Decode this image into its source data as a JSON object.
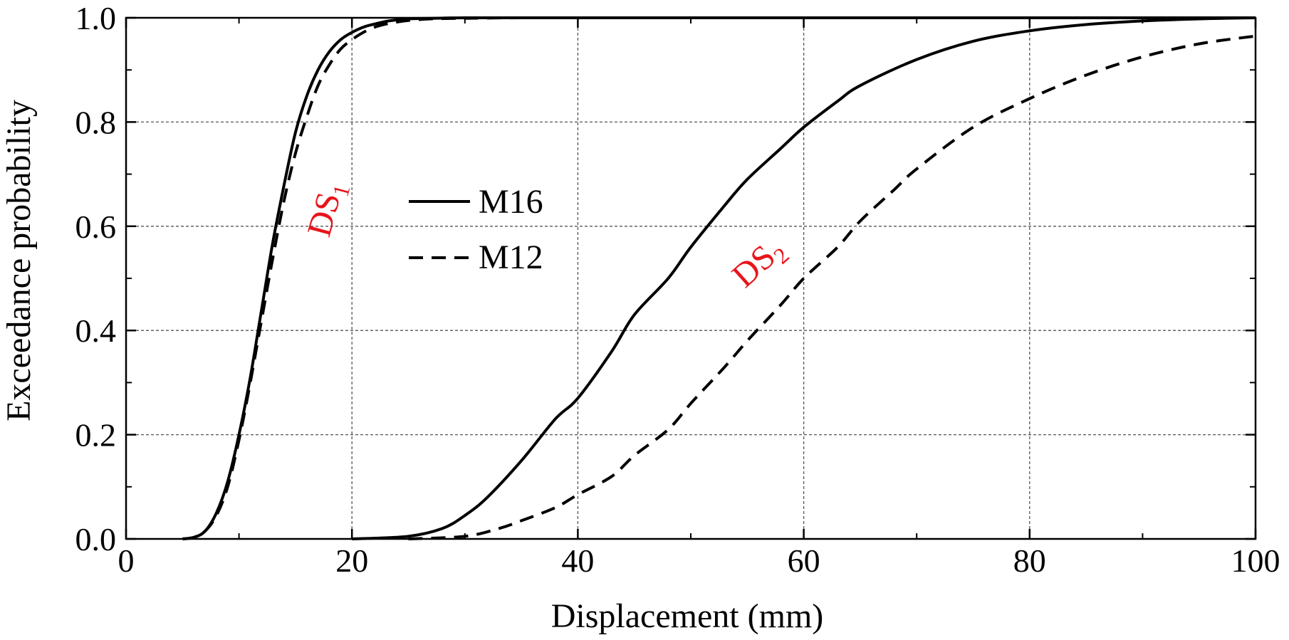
{
  "chart_data": {
    "type": "line",
    "xlabel": "Displacement (mm)",
    "ylabel": "Exceedance probability",
    "xlim": [
      0,
      100
    ],
    "ylim": [
      0,
      1.0
    ],
    "x_ticks": [
      "0",
      "20",
      "40",
      "60",
      "80",
      "100"
    ],
    "y_ticks": [
      "0.0",
      "0.2",
      "0.4",
      "0.6",
      "0.8",
      "1.0"
    ],
    "grid": true,
    "legend_position": "center-left",
    "legend": [
      {
        "name": "M16",
        "style": "solid"
      },
      {
        "name": "M12",
        "style": "dashed"
      }
    ],
    "annotations": [
      {
        "text": "DS",
        "subscript": "1",
        "color": "#e8141a"
      },
      {
        "text": "DS",
        "subscript": "2",
        "color": "#e8141a"
      }
    ],
    "series": [
      {
        "name": "M16",
        "style": "solid",
        "group": "DS1",
        "x": [
          5,
          6,
          7,
          8,
          9,
          10,
          11,
          12,
          13,
          14,
          15,
          16,
          17,
          18,
          19,
          20,
          21,
          22,
          23,
          24,
          25,
          27,
          30,
          35,
          40,
          60,
          100
        ],
        "y": [
          0.0,
          0.003,
          0.015,
          0.05,
          0.11,
          0.2,
          0.31,
          0.44,
          0.57,
          0.68,
          0.78,
          0.85,
          0.9,
          0.935,
          0.958,
          0.972,
          0.982,
          0.988,
          0.993,
          0.996,
          0.998,
          0.999,
          1.0,
          1.0,
          1.0,
          1.0,
          1.0
        ]
      },
      {
        "name": "M12",
        "style": "dashed",
        "group": "DS1",
        "x": [
          5,
          6,
          7,
          8,
          9,
          10,
          11,
          12,
          13,
          14,
          15,
          16,
          17,
          18,
          19,
          20,
          21,
          22,
          23,
          24,
          25,
          27,
          30,
          35,
          40,
          60,
          100
        ],
        "y": [
          0.0,
          0.003,
          0.015,
          0.045,
          0.1,
          0.19,
          0.3,
          0.42,
          0.54,
          0.65,
          0.74,
          0.81,
          0.87,
          0.91,
          0.94,
          0.958,
          0.972,
          0.982,
          0.988,
          0.992,
          0.995,
          0.998,
          0.999,
          1.0,
          1.0,
          1.0,
          1.0
        ]
      },
      {
        "name": "M16",
        "style": "solid",
        "group": "DS2",
        "x": [
          20,
          25,
          28,
          30,
          32,
          35,
          38,
          40,
          43,
          45,
          48,
          50,
          53,
          55,
          58,
          60,
          63,
          65,
          70,
          75,
          80,
          85,
          90,
          95,
          100
        ],
        "y": [
          0.0,
          0.005,
          0.02,
          0.045,
          0.08,
          0.15,
          0.23,
          0.27,
          0.36,
          0.43,
          0.5,
          0.56,
          0.64,
          0.69,
          0.75,
          0.79,
          0.84,
          0.87,
          0.92,
          0.955,
          0.975,
          0.987,
          0.994,
          0.998,
          1.0
        ]
      },
      {
        "name": "M12",
        "style": "dashed",
        "group": "DS2",
        "x": [
          25,
          30,
          33,
          35,
          38,
          40,
          43,
          45,
          48,
          50,
          53,
          55,
          58,
          60,
          63,
          65,
          68,
          70,
          75,
          80,
          85,
          90,
          95,
          100
        ],
        "y": [
          0.0,
          0.005,
          0.02,
          0.035,
          0.06,
          0.085,
          0.12,
          0.16,
          0.21,
          0.26,
          0.33,
          0.38,
          0.45,
          0.5,
          0.56,
          0.61,
          0.67,
          0.71,
          0.79,
          0.845,
          0.89,
          0.925,
          0.95,
          0.965
        ]
      }
    ]
  }
}
